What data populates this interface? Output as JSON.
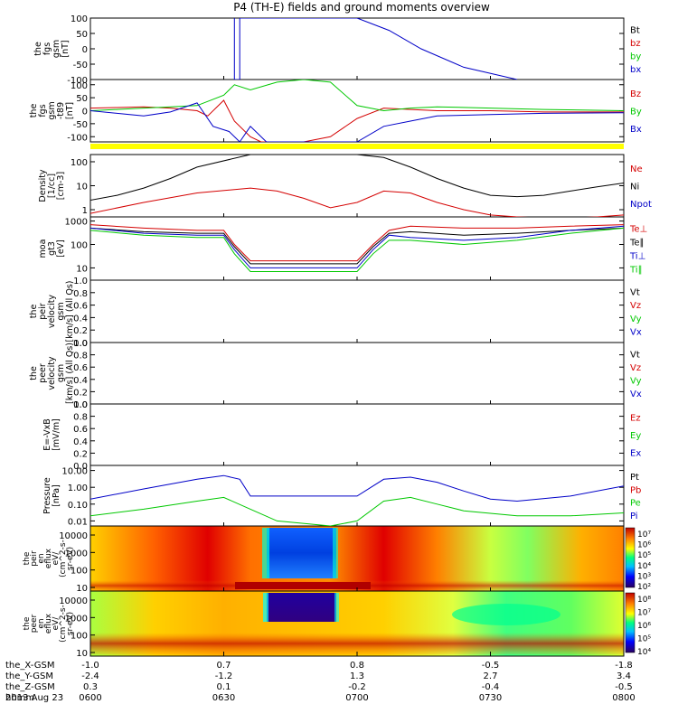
{
  "title": "P4 (TH-E) fields and ground moments overview",
  "date": "2013 Aug 23",
  "chart_data": {
    "type": "line",
    "x_ticks": [
      "0600",
      "0630",
      "0700",
      "0730",
      "0800"
    ],
    "ephemeris": {
      "labels": [
        "the_X-GSM",
        "the_Y-GSM",
        "the_Z-GSM",
        "hhmm"
      ],
      "rows": [
        [
          "-1.0",
          "0.7",
          "0.8",
          "-0.5",
          "-1.8"
        ],
        [
          "-2.4",
          "-1.2",
          "1.3",
          "2.7",
          "3.4"
        ],
        [
          "0.3",
          "0.1",
          "-0.2",
          "-0.4",
          "-0.5"
        ]
      ]
    },
    "panels": [
      {
        "ylabel": [
          "the",
          "fgs",
          "gsm",
          "[nT]"
        ],
        "scale": "linear",
        "ylim": [
          -100,
          100
        ],
        "y_ticks": [
          "100",
          "50",
          "0",
          "-50",
          "-100"
        ],
        "legend": [
          {
            "name": "Bt",
            "color": "#000000"
          },
          {
            "name": "bz",
            "color": "#d40000"
          },
          {
            "name": "by",
            "color": "#00c800"
          },
          {
            "name": "bx",
            "color": "#0000c8"
          }
        ],
        "series": [
          {
            "name": "Bt",
            "color": "#000000",
            "x": [],
            "y": []
          },
          {
            "name": "bx",
            "color": "#0000c8",
            "x": [
              0.0,
              0.27,
              0.27,
              0.28,
              0.28,
              0.5,
              0.56,
              0.62,
              0.7,
              0.8
            ],
            "y": [
              null,
              100,
              -100,
              -100,
              100,
              100,
              60,
              0,
              -60,
              -100
            ]
          }
        ]
      },
      {
        "ylabel": [
          "the",
          "fgs",
          "gsm",
          "-t89",
          "[nT]"
        ],
        "scale": "linear",
        "ylim": [
          -120,
          120
        ],
        "y_ticks": [
          "100",
          "50",
          "0",
          "-50",
          "-100"
        ],
        "legend": [
          {
            "name": "Bz",
            "color": "#d40000"
          },
          {
            "name": "By",
            "color": "#00c800"
          },
          {
            "name": "Bx",
            "color": "#0000c8"
          }
        ],
        "series": [
          {
            "name": "Bz",
            "color": "#d40000",
            "x": [
              0.0,
              0.05,
              0.1,
              0.15,
              0.2,
              0.22,
              0.25,
              0.27,
              0.3,
              0.32,
              0.35,
              0.4,
              0.45,
              0.5,
              0.55,
              0.6,
              0.65,
              0.75,
              0.85,
              1.0
            ],
            "y": [
              10,
              12,
              15,
              10,
              0,
              -20,
              40,
              -40,
              -100,
              -120,
              -120,
              -120,
              -100,
              -30,
              10,
              5,
              0,
              0,
              -5,
              -5
            ]
          },
          {
            "name": "By",
            "color": "#00c800",
            "x": [
              0.0,
              0.05,
              0.1,
              0.15,
              0.2,
              0.25,
              0.27,
              0.3,
              0.35,
              0.4,
              0.45,
              0.5,
              0.55,
              0.6,
              0.65,
              0.75,
              0.85,
              1.0
            ],
            "y": [
              0,
              5,
              10,
              15,
              20,
              60,
              100,
              80,
              110,
              120,
              110,
              20,
              0,
              10,
              15,
              10,
              5,
              0
            ]
          },
          {
            "name": "Bx",
            "color": "#0000c8",
            "x": [
              0.0,
              0.05,
              0.1,
              0.15,
              0.2,
              0.23,
              0.26,
              0.28,
              0.3,
              0.33,
              0.4,
              0.5,
              0.55,
              0.6,
              0.65,
              0.75,
              0.85,
              1.0
            ],
            "y": [
              0,
              -10,
              -20,
              -5,
              30,
              -60,
              -80,
              -120,
              -60,
              -120,
              -120,
              -120,
              -60,
              -40,
              -20,
              -15,
              -10,
              -8
            ]
          }
        ]
      },
      {
        "ylabel": [
          "Density",
          "[1/cc]",
          "[cm-3]"
        ],
        "scale": "log",
        "ylim": [
          0.5,
          200
        ],
        "y_ticks": [
          "100",
          "10",
          "1"
        ],
        "legend": [
          {
            "name": "Ne",
            "color": "#d40000"
          },
          {
            "name": "Ni",
            "color": "#000000"
          },
          {
            "name": "Npot",
            "color": "#0000c8"
          }
        ],
        "series": [
          {
            "name": "Ni",
            "color": "#000000",
            "x": [
              0.0,
              0.05,
              0.1,
              0.15,
              0.2,
              0.3,
              0.4,
              0.5,
              0.55,
              0.6,
              0.65,
              0.7,
              0.75,
              0.8,
              0.85,
              0.9,
              0.95,
              1.0
            ],
            "y": [
              2.5,
              4,
              8,
              20,
              60,
              200,
              200,
              200,
              150,
              60,
              20,
              8,
              4,
              3.5,
              4,
              6,
              9,
              13
            ]
          },
          {
            "name": "Ne",
            "color": "#d40000",
            "x": [
              0.0,
              0.1,
              0.2,
              0.3,
              0.35,
              0.4,
              0.45,
              0.5,
              0.55,
              0.6,
              0.65,
              0.7,
              0.75,
              0.8,
              0.85,
              0.9,
              0.95,
              1.0
            ],
            "y": [
              0.7,
              2,
              5,
              8,
              6,
              3,
              1.2,
              2,
              6,
              5,
              2,
              1,
              0.6,
              0.5,
              0.45,
              0.45,
              0.5,
              0.6
            ]
          }
        ]
      },
      {
        "ylabel": [
          "moa",
          "gt3",
          "[eV]"
        ],
        "scale": "log",
        "ylim": [
          3,
          1500
        ],
        "y_ticks": [
          "1000",
          "100",
          "10"
        ],
        "legend": [
          {
            "name": "Te⊥",
            "color": "#d40000"
          },
          {
            "name": "Te∥",
            "color": "#000000"
          },
          {
            "name": "Ti⊥",
            "color": "#0000c8"
          },
          {
            "name": "Ti∥",
            "color": "#00c800"
          }
        ],
        "series": [
          {
            "name": "Te⊥",
            "color": "#d40000",
            "x": [
              0.0,
              0.1,
              0.2,
              0.25,
              0.27,
              0.3,
              0.5,
              0.53,
              0.56,
              0.6,
              0.7,
              0.8,
              0.9,
              1.0
            ],
            "y": [
              700,
              500,
              400,
              400,
              100,
              20,
              20,
              100,
              400,
              600,
              500,
              500,
              600,
              700
            ]
          },
          {
            "name": "Te∥",
            "color": "#000000",
            "x": [
              0.0,
              0.1,
              0.2,
              0.25,
              0.27,
              0.3,
              0.5,
              0.53,
              0.56,
              0.6,
              0.7,
              0.8,
              0.9,
              1.0
            ],
            "y": [
              500,
              350,
              300,
              300,
              80,
              15,
              15,
              80,
              300,
              350,
              250,
              300,
              400,
              500
            ]
          },
          {
            "name": "Ti⊥",
            "color": "#0000c8",
            "x": [
              0.0,
              0.1,
              0.2,
              0.25,
              0.27,
              0.3,
              0.5,
              0.53,
              0.56,
              0.6,
              0.7,
              0.8,
              0.9,
              1.0
            ],
            "y": [
              500,
              300,
              250,
              250,
              60,
              10,
              10,
              60,
              250,
              200,
              150,
              200,
              400,
              600
            ]
          },
          {
            "name": "Ti∥",
            "color": "#00c800",
            "x": [
              0.0,
              0.1,
              0.2,
              0.25,
              0.27,
              0.3,
              0.5,
              0.53,
              0.56,
              0.6,
              0.7,
              0.8,
              0.9,
              1.0
            ],
            "y": [
              400,
              250,
              200,
              200,
              40,
              7,
              7,
              40,
              150,
              150,
              100,
              150,
              300,
              500
            ]
          }
        ]
      },
      {
        "ylabel": [
          "the",
          "peir",
          "velocity",
          "gsm",
          "[km/s] (All Qs)"
        ],
        "scale": "linear",
        "ylim": [
          0,
          1
        ],
        "y_ticks": [
          "1.0",
          "0.8",
          "0.6",
          "0.4",
          "0.2",
          "0.0"
        ],
        "legend": [
          {
            "name": "Vt",
            "color": "#000000"
          },
          {
            "name": "Vz",
            "color": "#d40000"
          },
          {
            "name": "Vy",
            "color": "#00c800"
          },
          {
            "name": "Vx",
            "color": "#0000c8"
          }
        ],
        "series": []
      },
      {
        "ylabel": [
          "the",
          "peer",
          "velocity",
          "gsm",
          "[km/s] (All Qs)"
        ],
        "scale": "linear",
        "ylim": [
          0,
          1
        ],
        "y_ticks": [
          "1.0",
          "0.8",
          "0.6",
          "0.4",
          "0.2",
          "0.0"
        ],
        "legend": [
          {
            "name": "Vt",
            "color": "#000000"
          },
          {
            "name": "Vz",
            "color": "#d40000"
          },
          {
            "name": "Vy",
            "color": "#00c800"
          },
          {
            "name": "Vx",
            "color": "#0000c8"
          }
        ],
        "series": []
      },
      {
        "ylabel": [
          "E=-VxB",
          "[mV/m]"
        ],
        "scale": "linear",
        "ylim": [
          0,
          1
        ],
        "y_ticks": [
          "1.0",
          "0.8",
          "0.6",
          "0.4",
          "0.2",
          "0.0"
        ],
        "legend": [
          {
            "name": "Ez",
            "color": "#d40000"
          },
          {
            "name": "Ey",
            "color": "#00c800"
          },
          {
            "name": "Ex",
            "color": "#0000c8"
          }
        ],
        "series": []
      },
      {
        "ylabel": [
          "Pressure",
          "[nPa]"
        ],
        "scale": "log",
        "ylim": [
          0.005,
          20
        ],
        "y_ticks": [
          "10.00",
          "1.00",
          "0.10",
          "0.01"
        ],
        "legend": [
          {
            "name": "Pt",
            "color": "#000000"
          },
          {
            "name": "Pb",
            "color": "#d40000"
          },
          {
            "name": "Pe",
            "color": "#00c800"
          },
          {
            "name": "Pi",
            "color": "#0000c8"
          }
        ],
        "series": [
          {
            "name": "Pi",
            "color": "#0000c8",
            "x": [
              0.0,
              0.1,
              0.2,
              0.25,
              0.28,
              0.3,
              0.35,
              0.5,
              0.55,
              0.6,
              0.65,
              0.7,
              0.75,
              0.8,
              0.9,
              1.0
            ],
            "y": [
              0.2,
              0.8,
              3,
              5,
              3,
              0.3,
              0.3,
              0.3,
              3,
              4,
              2,
              0.6,
              0.2,
              0.15,
              0.3,
              1.2
            ]
          },
          {
            "name": "Pe",
            "color": "#00c800",
            "x": [
              0.0,
              0.1,
              0.2,
              0.25,
              0.3,
              0.35,
              0.45,
              0.5,
              0.55,
              0.6,
              0.65,
              0.7,
              0.8,
              0.9,
              1.0
            ],
            "y": [
              0.02,
              0.05,
              0.15,
              0.25,
              0.05,
              0.01,
              0.005,
              0.01,
              0.15,
              0.25,
              0.1,
              0.04,
              0.02,
              0.02,
              0.03
            ]
          }
        ]
      }
    ],
    "spectrograms": [
      {
        "ylabel": [
          "the",
          "peir",
          "en",
          "eflux",
          "eV/",
          "(cm^2-s-",
          "sr-eV)"
        ],
        "y_ticks": [
          "10000",
          "1000",
          "100",
          "10"
        ],
        "colorbar_ticks": [
          "10⁷",
          "10⁶",
          "10⁵",
          "10⁴",
          "10³",
          "10²"
        ]
      },
      {
        "ylabel": [
          "the",
          "peer",
          "en",
          "eflux",
          "eV/",
          "(cm^2-s-",
          "sr-eV)"
        ],
        "y_ticks": [
          "10000",
          "1000",
          "100",
          "10"
        ],
        "colorbar_ticks": [
          "10⁸",
          "10⁷",
          "10⁶",
          "10⁵",
          "10⁴"
        ]
      }
    ]
  }
}
